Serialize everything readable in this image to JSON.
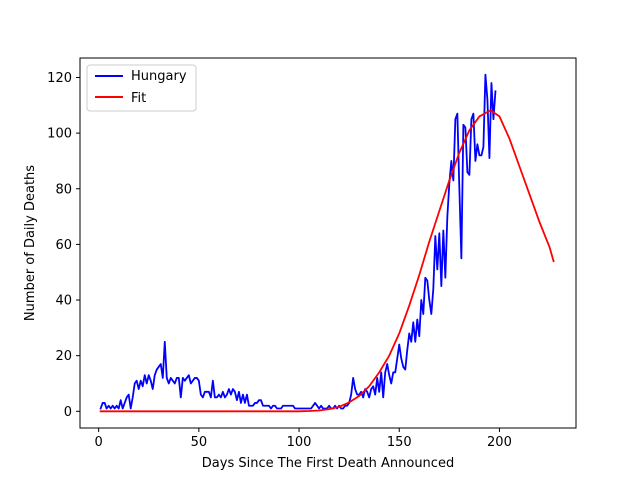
{
  "chart_data": {
    "type": "line",
    "title": "",
    "xlabel": "Days Since The First Death Announced",
    "ylabel": "Number of Daily Deaths",
    "xlim": [
      -9.3,
      238.2
    ],
    "ylim": [
      -6,
      127
    ],
    "xticks": [
      0,
      50,
      100,
      150,
      200
    ],
    "yticks": [
      0,
      20,
      40,
      60,
      80,
      100,
      120
    ],
    "legend": {
      "position": "top-left"
    },
    "grid": false,
    "series": [
      {
        "name": "Hungary",
        "color": "#0000ff",
        "x": [
          1,
          2,
          3,
          4,
          5,
          6,
          7,
          8,
          9,
          10,
          11,
          12,
          13,
          14,
          15,
          16,
          17,
          18,
          19,
          20,
          21,
          22,
          23,
          24,
          25,
          26,
          27,
          28,
          29,
          30,
          31,
          32,
          33,
          34,
          35,
          36,
          37,
          38,
          39,
          40,
          41,
          42,
          43,
          44,
          45,
          46,
          47,
          48,
          49,
          50,
          51,
          52,
          53,
          54,
          55,
          56,
          57,
          58,
          59,
          60,
          61,
          62,
          63,
          64,
          65,
          66,
          67,
          68,
          69,
          70,
          71,
          72,
          73,
          74,
          75,
          76,
          77,
          78,
          79,
          80,
          81,
          82,
          83,
          84,
          85,
          86,
          87,
          88,
          89,
          90,
          91,
          92,
          93,
          94,
          95,
          96,
          97,
          98,
          99,
          100,
          101,
          102,
          103,
          104,
          105,
          106,
          107,
          108,
          109,
          110,
          111,
          112,
          113,
          114,
          115,
          116,
          117,
          118,
          119,
          120,
          121,
          122,
          123,
          124,
          125,
          126,
          127,
          128,
          129,
          130,
          131,
          132,
          133,
          134,
          135,
          136,
          137,
          138,
          139,
          140,
          141,
          142,
          143,
          144,
          145,
          146,
          147,
          148,
          149,
          150,
          151,
          152,
          153,
          154,
          155,
          156,
          157,
          158,
          159,
          160,
          161,
          162,
          163,
          164,
          165,
          166,
          167,
          168,
          169,
          170,
          171,
          172,
          173,
          174,
          175,
          176,
          177,
          178,
          179,
          180,
          181,
          182,
          183,
          184,
          185,
          186,
          187,
          188,
          189,
          190,
          191,
          192,
          193,
          194,
          195,
          196,
          197,
          198
        ],
        "values": [
          1,
          3,
          3,
          1,
          2,
          1,
          2,
          1,
          2,
          1,
          4,
          1,
          3,
          5,
          6,
          1,
          5,
          10,
          11,
          8,
          11,
          9,
          13,
          10,
          13,
          11,
          8,
          13,
          15,
          16,
          17,
          12,
          25,
          12,
          10,
          12,
          11,
          10,
          12,
          12,
          5,
          12,
          11,
          12,
          13,
          10,
          11,
          12,
          12,
          11,
          6,
          5,
          7,
          7,
          7,
          5,
          11,
          5,
          5,
          6,
          5,
          7,
          5,
          6,
          8,
          6,
          8,
          7,
          4,
          7,
          3,
          6,
          3,
          6,
          2,
          2,
          2,
          3,
          3,
          4,
          4,
          2,
          2,
          2,
          2,
          1,
          2,
          2,
          1,
          1,
          1,
          2,
          2,
          2,
          2,
          2,
          2,
          1,
          1,
          1,
          1,
          1,
          1,
          1,
          1,
          1,
          2,
          3,
          2,
          1,
          2,
          1,
          1,
          1,
          2,
          1,
          1,
          2,
          1,
          2,
          1,
          1,
          2,
          2,
          3,
          6,
          12,
          8,
          6,
          6,
          7,
          5,
          8,
          7,
          5,
          8,
          9,
          6,
          12,
          7,
          14,
          5,
          14,
          17,
          13,
          10,
          14,
          14,
          19,
          24,
          19,
          16,
          15,
          22,
          28,
          25,
          32,
          25,
          33,
          27,
          40,
          35,
          48,
          47,
          40,
          35,
          44,
          63,
          51,
          64,
          45,
          65,
          48,
          70,
          82,
          90,
          83,
          105,
          107,
          80,
          55,
          103,
          102,
          86,
          85,
          105,
          107,
          90,
          96,
          92,
          92,
          95,
          121,
          112,
          91,
          118,
          105,
          115
        ]
      },
      {
        "name": "Fit",
        "color": "#ff0000",
        "x": [
          1,
          5,
          10,
          15,
          20,
          25,
          30,
          35,
          40,
          45,
          50,
          55,
          60,
          65,
          70,
          75,
          80,
          85,
          90,
          95,
          100,
          105,
          110,
          115,
          120,
          125,
          130,
          135,
          140,
          145,
          150,
          155,
          160,
          165,
          170,
          175,
          180,
          185,
          190,
          195,
          196,
          200,
          205,
          210,
          215,
          220,
          225,
          227
        ],
        "values": [
          0,
          0,
          0,
          0,
          0,
          0,
          0,
          0,
          0,
          0,
          0,
          0,
          0,
          0,
          0,
          0,
          0,
          0,
          0,
          0,
          0,
          0.1,
          0.3,
          0.8,
          1.6,
          3.2,
          5.5,
          9,
          14,
          20,
          28,
          38,
          49,
          61,
          72,
          83,
          93,
          101,
          106,
          108,
          108,
          106,
          98,
          88,
          78,
          68,
          59,
          54
        ]
      }
    ]
  }
}
